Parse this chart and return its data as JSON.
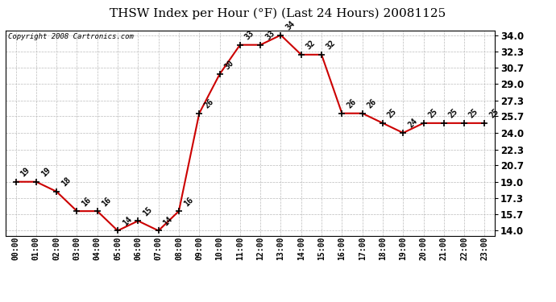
{
  "title": "THSW Index per Hour (°F) (Last 24 Hours) 20081125",
  "copyright": "Copyright 2008 Cartronics.com",
  "hours": [
    "00:00",
    "01:00",
    "02:00",
    "03:00",
    "04:00",
    "05:00",
    "06:00",
    "07:00",
    "08:00",
    "09:00",
    "10:00",
    "11:00",
    "12:00",
    "13:00",
    "14:00",
    "15:00",
    "16:00",
    "17:00",
    "18:00",
    "19:00",
    "20:00",
    "21:00",
    "22:00",
    "23:00"
  ],
  "values": [
    19,
    19,
    18,
    16,
    16,
    14,
    15,
    14,
    16,
    26,
    30,
    33,
    33,
    34,
    32,
    32,
    26,
    26,
    25,
    24,
    25,
    25,
    25,
    25
  ],
  "yticks": [
    14.0,
    15.7,
    17.3,
    19.0,
    20.7,
    22.3,
    24.0,
    25.7,
    27.3,
    29.0,
    30.7,
    32.3,
    34.0
  ],
  "ylim": [
    13.5,
    34.5
  ],
  "line_color": "#cc0000",
  "bg_color": "#ffffff",
  "grid_color": "#bbbbbb",
  "title_fontsize": 11,
  "ylabel_fontsize": 8.5,
  "xlabel_fontsize": 7,
  "annot_fontsize": 7,
  "copyright_fontsize": 6.5
}
